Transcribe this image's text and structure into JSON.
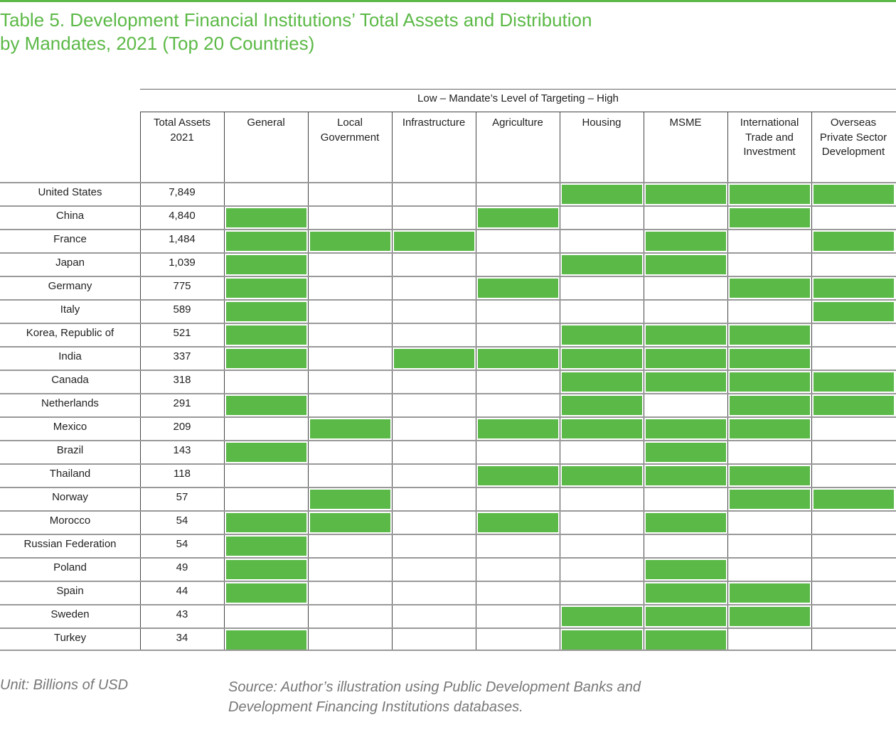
{
  "title_line1": "Table 5. Development Financial Institutions’ Total Assets and Distribution",
  "title_line2": "by Mandates, 2021 (Top 20 Countries)",
  "targeting_label": "Low – Mandate’s Level of Targeting – High",
  "total_header": [
    "Total Assets",
    "2021"
  ],
  "mandates": [
    [
      "General"
    ],
    [
      "Local",
      "Government"
    ],
    [
      "Infrastructure"
    ],
    [
      "Agriculture"
    ],
    [
      "Housing"
    ],
    [
      "MSME"
    ],
    [
      "International",
      "Trade and",
      "Investment"
    ],
    [
      "Overseas",
      "Private Sector",
      "Development"
    ]
  ],
  "mandate_keys": [
    "General",
    "Local Government",
    "Infrastructure",
    "Agriculture",
    "Housing",
    "MSME",
    "International Trade and Investment",
    "Overseas Private Sector Development"
  ],
  "fill_color": "#5ab947",
  "rows": [
    {
      "country": "United States",
      "assets": "7,849",
      "mandates": [
        0,
        0,
        0,
        0,
        1,
        1,
        1,
        1
      ]
    },
    {
      "country": "China",
      "assets": "4,840",
      "mandates": [
        1,
        0,
        0,
        1,
        0,
        0,
        1,
        0
      ]
    },
    {
      "country": "France",
      "assets": "1,484",
      "mandates": [
        1,
        1,
        1,
        0,
        0,
        1,
        0,
        1
      ]
    },
    {
      "country": "Japan",
      "assets": "1,039",
      "mandates": [
        1,
        0,
        0,
        0,
        1,
        1,
        0,
        0
      ]
    },
    {
      "country": "Germany",
      "assets": "775",
      "mandates": [
        1,
        0,
        0,
        1,
        0,
        0,
        1,
        1
      ]
    },
    {
      "country": "Italy",
      "assets": "589",
      "mandates": [
        1,
        0,
        0,
        0,
        0,
        0,
        0,
        1
      ]
    },
    {
      "country": "Korea, Republic of",
      "assets": "521",
      "mandates": [
        1,
        0,
        0,
        0,
        1,
        1,
        1,
        0
      ]
    },
    {
      "country": "India",
      "assets": "337",
      "mandates": [
        1,
        0,
        1,
        1,
        1,
        1,
        1,
        0
      ]
    },
    {
      "country": "Canada",
      "assets": "318",
      "mandates": [
        0,
        0,
        0,
        0,
        1,
        1,
        1,
        1
      ]
    },
    {
      "country": "Netherlands",
      "assets": "291",
      "mandates": [
        1,
        0,
        0,
        0,
        1,
        0,
        1,
        1
      ]
    },
    {
      "country": "Mexico",
      "assets": "209",
      "mandates": [
        0,
        1,
        0,
        1,
        1,
        1,
        1,
        0
      ]
    },
    {
      "country": "Brazil",
      "assets": "143",
      "mandates": [
        1,
        0,
        0,
        0,
        0,
        1,
        0,
        0
      ]
    },
    {
      "country": "Thailand",
      "assets": "118",
      "mandates": [
        0,
        0,
        0,
        1,
        1,
        1,
        1,
        0
      ]
    },
    {
      "country": "Norway",
      "assets": "57",
      "mandates": [
        0,
        1,
        0,
        0,
        0,
        0,
        1,
        1
      ]
    },
    {
      "country": "Morocco",
      "assets": "54",
      "mandates": [
        1,
        1,
        0,
        1,
        0,
        1,
        0,
        0
      ]
    },
    {
      "country": "Russian Federation",
      "assets": "54",
      "mandates": [
        1,
        0,
        0,
        0,
        0,
        0,
        0,
        0
      ]
    },
    {
      "country": "Poland",
      "assets": "49",
      "mandates": [
        1,
        0,
        0,
        0,
        0,
        1,
        0,
        0
      ]
    },
    {
      "country": "Spain",
      "assets": "44",
      "mandates": [
        1,
        0,
        0,
        0,
        0,
        1,
        1,
        0
      ]
    },
    {
      "country": "Sweden",
      "assets": "43",
      "mandates": [
        0,
        0,
        0,
        0,
        1,
        1,
        1,
        0
      ]
    },
    {
      "country": "Turkey",
      "assets": "34",
      "mandates": [
        1,
        0,
        0,
        0,
        1,
        1,
        0,
        0
      ]
    }
  ],
  "unit": "Unit: Billions of USD",
  "source_line1": "Source: Author’s illustration using Public Development Banks and",
  "source_line2": "Development Financing Institutions databases."
}
